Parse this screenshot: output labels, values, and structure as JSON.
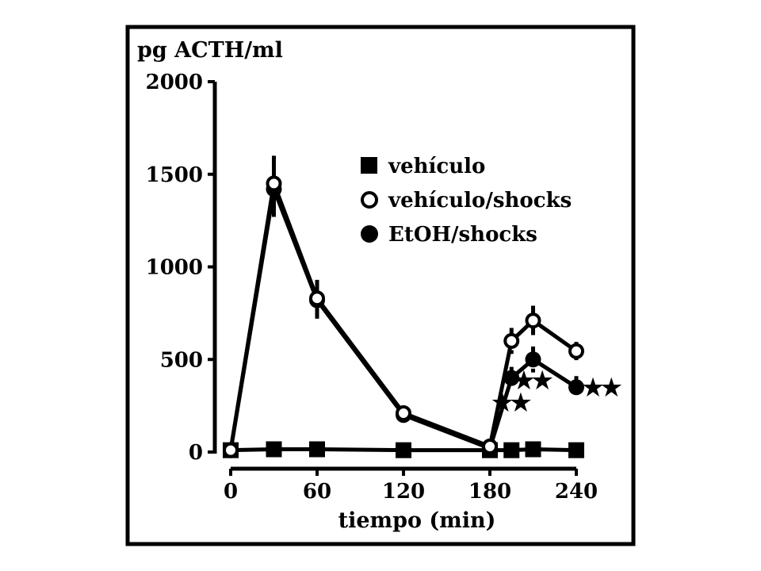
{
  "chart_data": {
    "type": "line",
    "ylabel": "pg ACTH/ml",
    "xlabel": "tiempo (min)",
    "xlim": [
      0,
      240
    ],
    "ylim": [
      0,
      2000
    ],
    "xticks": [
      0,
      60,
      120,
      180,
      240
    ],
    "yticks": [
      0,
      500,
      1000,
      1500,
      2000
    ],
    "legend_position": "top-right",
    "grid": false,
    "series": [
      {
        "name": "vehículo",
        "marker": "filled-square",
        "x": [
          0,
          30,
          60,
          120,
          180,
          195,
          210,
          240
        ],
        "y": [
          10,
          15,
          15,
          10,
          10,
          10,
          15,
          10
        ]
      },
      {
        "name": "vehículo/shocks",
        "marker": "open-circle",
        "x": [
          0,
          30,
          60,
          120,
          180,
          195,
          210,
          240
        ],
        "y": [
          10,
          1450,
          830,
          210,
          30,
          600,
          710,
          545
        ],
        "err": [
          0,
          150,
          100,
          0,
          0,
          70,
          80,
          50
        ]
      },
      {
        "name": "EtOH/shocks",
        "marker": "filled-circle",
        "x": [
          0,
          30,
          60,
          120,
          180,
          195,
          210,
          240
        ],
        "y": [
          10,
          1420,
          820,
          200,
          20,
          400,
          500,
          350
        ],
        "err": [
          0,
          150,
          100,
          0,
          0,
          60,
          70,
          60
        ]
      }
    ],
    "annotations": [
      {
        "text": "★★",
        "x": 210,
        "y": 350
      },
      {
        "text": "★★",
        "x": 195,
        "y": 230
      },
      {
        "text": "★★",
        "x": 258,
        "y": 310
      }
    ]
  }
}
